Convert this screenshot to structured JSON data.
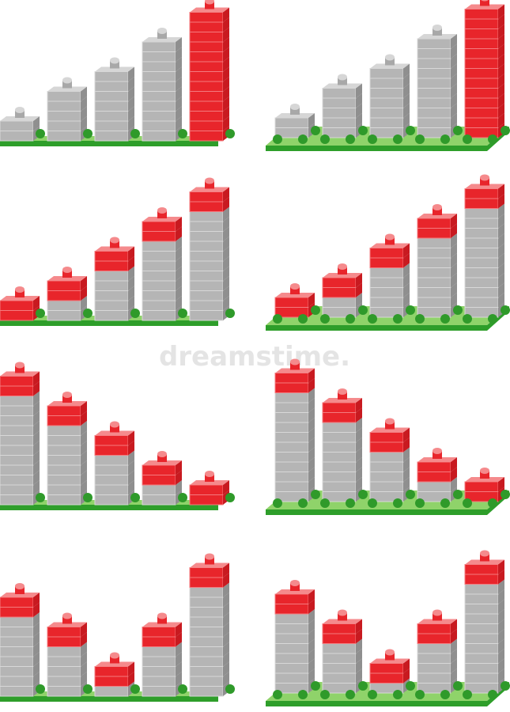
{
  "watermark": "dreamstime.",
  "panels": [
    {
      "style": "flat",
      "blocks": [
        2,
        5,
        7,
        10,
        13
      ],
      "red": [
        0,
        0,
        0,
        0,
        13
      ]
    },
    {
      "style": "iso",
      "blocks": [
        2,
        5,
        7,
        10,
        13
      ],
      "red": [
        0,
        0,
        0,
        0,
        13
      ]
    },
    {
      "style": "flat",
      "blocks": [
        2,
        4,
        7,
        10,
        13
      ],
      "red": [
        2,
        2,
        2,
        2,
        2
      ]
    },
    {
      "style": "iso",
      "blocks": [
        2,
        4,
        7,
        10,
        13
      ],
      "red": [
        2,
        2,
        2,
        2,
        2
      ]
    },
    {
      "style": "flat",
      "blocks": [
        13,
        10,
        7,
        4,
        2
      ],
      "red": [
        2,
        2,
        2,
        2,
        2
      ]
    },
    {
      "style": "iso",
      "blocks": [
        13,
        10,
        7,
        4,
        2
      ],
      "red": [
        2,
        2,
        2,
        2,
        2
      ]
    },
    {
      "style": "flat",
      "blocks": [
        10,
        7,
        3,
        7,
        13
      ],
      "red": [
        2,
        2,
        2,
        2,
        2
      ]
    },
    {
      "style": "iso",
      "blocks": [
        10,
        7,
        3,
        7,
        13
      ],
      "red": [
        2,
        2,
        2,
        2,
        2
      ]
    }
  ]
}
